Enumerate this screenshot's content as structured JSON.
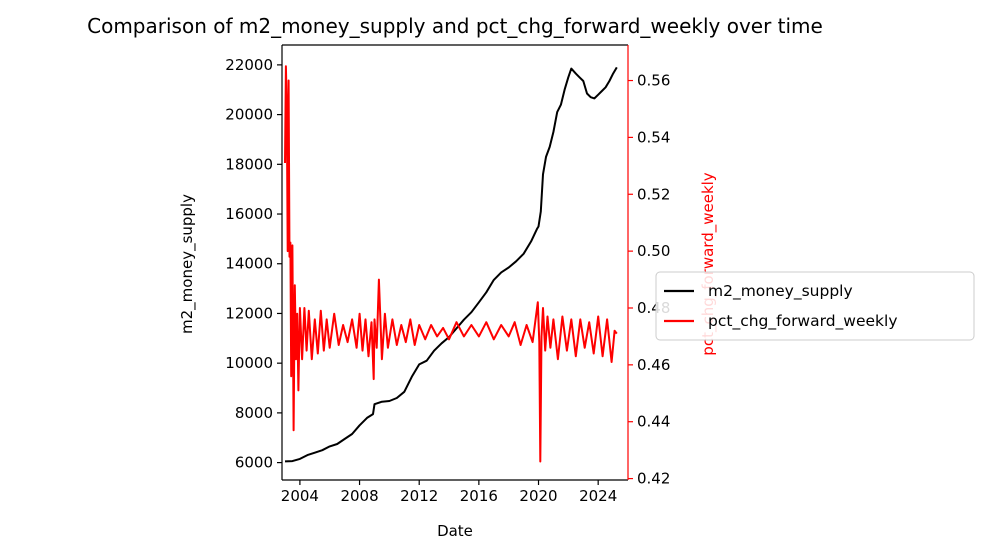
{
  "chart_data": {
    "type": "line",
    "title": "Comparison of m2_money_supply and pct_chg_forward_weekly over time",
    "xlabel": "Date",
    "ylabel": "m2_money_supply",
    "ylabel_right": "pct_chg_forward_weekly",
    "xlim": [
      2002.8,
      2026.0
    ],
    "ylim": [
      5300,
      22800
    ],
    "ylim_right": [
      0.4195,
      0.5725
    ],
    "x_ticks": [
      2004,
      2008,
      2012,
      2016,
      2020,
      2024
    ],
    "y_ticks": [
      6000,
      8000,
      10000,
      12000,
      14000,
      16000,
      18000,
      20000,
      22000
    ],
    "y_ticks_right": [
      0.42,
      0.44,
      0.46,
      0.48,
      0.5,
      0.52,
      0.54,
      0.56
    ],
    "grid": false,
    "legend_position": "right, outside",
    "series": [
      {
        "name": "m2_money_supply",
        "axis": "left",
        "color": "#000000",
        "x": [
          2003.0,
          2003.5,
          2004.0,
          2004.5,
          2005.0,
          2005.5,
          2006.0,
          2006.5,
          2007.0,
          2007.5,
          2008.0,
          2008.5,
          2008.9,
          2009.0,
          2009.5,
          2010.0,
          2010.5,
          2011.0,
          2011.5,
          2012.0,
          2012.5,
          2013.0,
          2013.5,
          2014.0,
          2014.5,
          2015.0,
          2015.5,
          2016.0,
          2016.5,
          2017.0,
          2017.5,
          2018.0,
          2018.5,
          2019.0,
          2019.5,
          2019.9,
          2020.0,
          2020.15,
          2020.3,
          2020.5,
          2020.75,
          2021.0,
          2021.25,
          2021.5,
          2021.75,
          2022.0,
          2022.2,
          2022.5,
          2022.75,
          2023.0,
          2023.25,
          2023.5,
          2023.75,
          2024.0,
          2024.25,
          2024.5,
          2024.75,
          2025.0,
          2025.25
        ],
        "values": [
          6050,
          6060,
          6150,
          6300,
          6400,
          6500,
          6650,
          6750,
          6950,
          7150,
          7500,
          7800,
          7950,
          8350,
          8450,
          8480,
          8600,
          8850,
          9450,
          9950,
          10100,
          10500,
          10800,
          11050,
          11400,
          11750,
          12050,
          12450,
          12850,
          13350,
          13650,
          13850,
          14100,
          14400,
          14900,
          15400,
          15500,
          16100,
          17600,
          18300,
          18700,
          19300,
          20100,
          20400,
          21000,
          21500,
          21850,
          21650,
          21500,
          21350,
          20850,
          20700,
          20650,
          20800,
          20950,
          21100,
          21350,
          21650,
          21900
        ]
      },
      {
        "name": "pct_chg_forward_weekly",
        "axis": "right",
        "color": "#ff0000",
        "x": [
          2003.0,
          2003.06,
          2003.12,
          2003.18,
          2003.24,
          2003.3,
          2003.36,
          2003.42,
          2003.5,
          2003.58,
          2003.66,
          2003.74,
          2003.82,
          2003.9,
          2004.0,
          2004.15,
          2004.3,
          2004.45,
          2004.6,
          2004.8,
          2005.0,
          2005.2,
          2005.4,
          2005.6,
          2005.8,
          2006.0,
          2006.3,
          2006.6,
          2006.9,
          2007.2,
          2007.5,
          2007.8,
          2008.0,
          2008.2,
          2008.4,
          2008.6,
          2008.8,
          2008.95,
          2009.0,
          2009.15,
          2009.3,
          2009.5,
          2009.7,
          2009.9,
          2010.2,
          2010.5,
          2010.8,
          2011.1,
          2011.4,
          2011.7,
          2012.0,
          2012.4,
          2012.8,
          2013.2,
          2013.6,
          2014.0,
          2014.5,
          2015.0,
          2015.5,
          2016.0,
          2016.5,
          2017.0,
          2017.5,
          2018.0,
          2018.4,
          2018.8,
          2019.2,
          2019.6,
          2019.95,
          2020.05,
          2020.12,
          2020.2,
          2020.3,
          2020.45,
          2020.6,
          2020.8,
          2021.0,
          2021.3,
          2021.6,
          2021.9,
          2022.2,
          2022.5,
          2022.8,
          2023.1,
          2023.4,
          2023.7,
          2024.0,
          2024.3,
          2024.6,
          2024.9,
          2025.1,
          2025.25
        ],
        "values": [
          0.531,
          0.565,
          0.55,
          0.5,
          0.56,
          0.498,
          0.503,
          0.456,
          0.502,
          0.437,
          0.488,
          0.462,
          0.478,
          0.451,
          0.48,
          0.462,
          0.48,
          0.465,
          0.479,
          0.462,
          0.476,
          0.464,
          0.479,
          0.465,
          0.476,
          0.466,
          0.478,
          0.467,
          0.474,
          0.468,
          0.476,
          0.466,
          0.478,
          0.465,
          0.476,
          0.463,
          0.475,
          0.455,
          0.476,
          0.466,
          0.49,
          0.462,
          0.478,
          0.466,
          0.476,
          0.467,
          0.474,
          0.468,
          0.476,
          0.467,
          0.474,
          0.469,
          0.474,
          0.47,
          0.473,
          0.469,
          0.475,
          0.47,
          0.474,
          0.47,
          0.475,
          0.469,
          0.474,
          0.47,
          0.475,
          0.467,
          0.474,
          0.468,
          0.482,
          0.468,
          0.426,
          0.47,
          0.48,
          0.465,
          0.477,
          0.466,
          0.476,
          0.462,
          0.477,
          0.465,
          0.476,
          0.463,
          0.476,
          0.466,
          0.475,
          0.464,
          0.477,
          0.463,
          0.476,
          0.461,
          0.472,
          0.471
        ]
      }
    ]
  }
}
